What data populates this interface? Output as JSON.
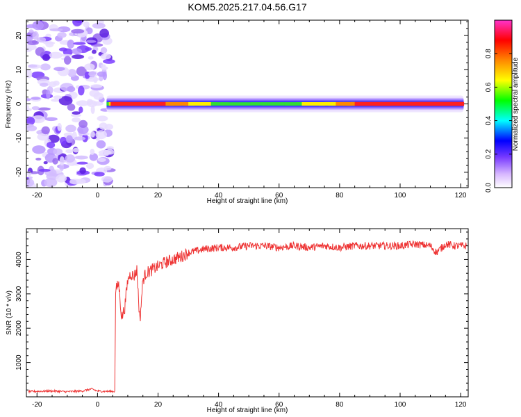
{
  "title": "KOM5.2025.217.04.56.G17",
  "chart_data": [
    {
      "type": "heatmap",
      "xlabel": "Height of straight line (km)",
      "ylabel": "Frequency (Hz)",
      "xlim": [
        -23.5,
        122.5
      ],
      "ylim": [
        -24.5,
        24.5
      ],
      "xticks": [
        -20,
        0,
        20,
        40,
        60,
        80,
        100,
        120
      ],
      "yticks": [
        -20,
        -10,
        0,
        10,
        20
      ],
      "ridge": {
        "x_start": 3,
        "x_end": 121,
        "frequency": 0,
        "amplitude_profile": [
          {
            "x": 3,
            "amp": 0.5
          },
          {
            "x": 5,
            "amp": 0.95
          },
          {
            "x": 10,
            "amp": 0.9
          },
          {
            "x": 20,
            "amp": 0.88
          },
          {
            "x": 30,
            "amp": 0.75
          },
          {
            "x": 45,
            "amp": 0.55
          },
          {
            "x": 60,
            "amp": 0.6
          },
          {
            "x": 75,
            "amp": 0.7
          },
          {
            "x": 85,
            "amp": 0.85
          },
          {
            "x": 95,
            "amp": 0.9
          },
          {
            "x": 100,
            "amp": 0.85
          },
          {
            "x": 110,
            "amp": 0.95
          },
          {
            "x": 121,
            "amp": 0.95
          }
        ]
      },
      "noise_region": {
        "x_start": -23.5,
        "x_end": 2,
        "max_amplitude": 0.15
      },
      "grid": false
    },
    {
      "type": "colorbar",
      "label": "Normalized spectral amplitude",
      "range": [
        0.0,
        1.0
      ],
      "ticks": [
        "0.0",
        "0.2",
        "0.4",
        "0.6",
        "0.8"
      ],
      "colors": [
        "#ff33cc",
        "#ff0000",
        "#ff8800",
        "#ffff00",
        "#00ff00",
        "#00ffff",
        "#0000ff",
        "#cc88ff",
        "#ffffff"
      ]
    },
    {
      "type": "line",
      "xlabel": "Height of straight line (km)",
      "ylabel": "SNR (10 * v/v)",
      "xlim": [
        -23.5,
        122.5
      ],
      "ylim": [
        0,
        4900
      ],
      "xticks": [
        -20,
        0,
        20,
        40,
        60,
        80,
        100,
        120
      ],
      "yticks": [
        1000,
        2000,
        3000,
        4000
      ],
      "line_color": "#ee3333",
      "grid": false,
      "series": [
        {
          "x": [
            -23,
            -20,
            -15,
            -10,
            -5,
            -2,
            0,
            2,
            5,
            5.7,
            6,
            7,
            8,
            9,
            10,
            11,
            12,
            13,
            14,
            15,
            16,
            18,
            20,
            22,
            25,
            28,
            30,
            35,
            40,
            45,
            50,
            55,
            60,
            65,
            70,
            75,
            80,
            85,
            90,
            95,
            100,
            105,
            110,
            112,
            115,
            118,
            122
          ],
          "y": [
            150,
            160,
            170,
            150,
            170,
            230,
            170,
            160,
            160,
            160,
            3100,
            3300,
            2300,
            2600,
            3400,
            3600,
            3500,
            3700,
            2200,
            3400,
            3600,
            3700,
            3800,
            3900,
            4000,
            4100,
            4200,
            4300,
            4350,
            4350,
            4400,
            4400,
            4350,
            4400,
            4350,
            4400,
            4350,
            4400,
            4400,
            4400,
            4400,
            4450,
            4400,
            4200,
            4450,
            4400,
            4400
          ]
        }
      ]
    }
  ]
}
